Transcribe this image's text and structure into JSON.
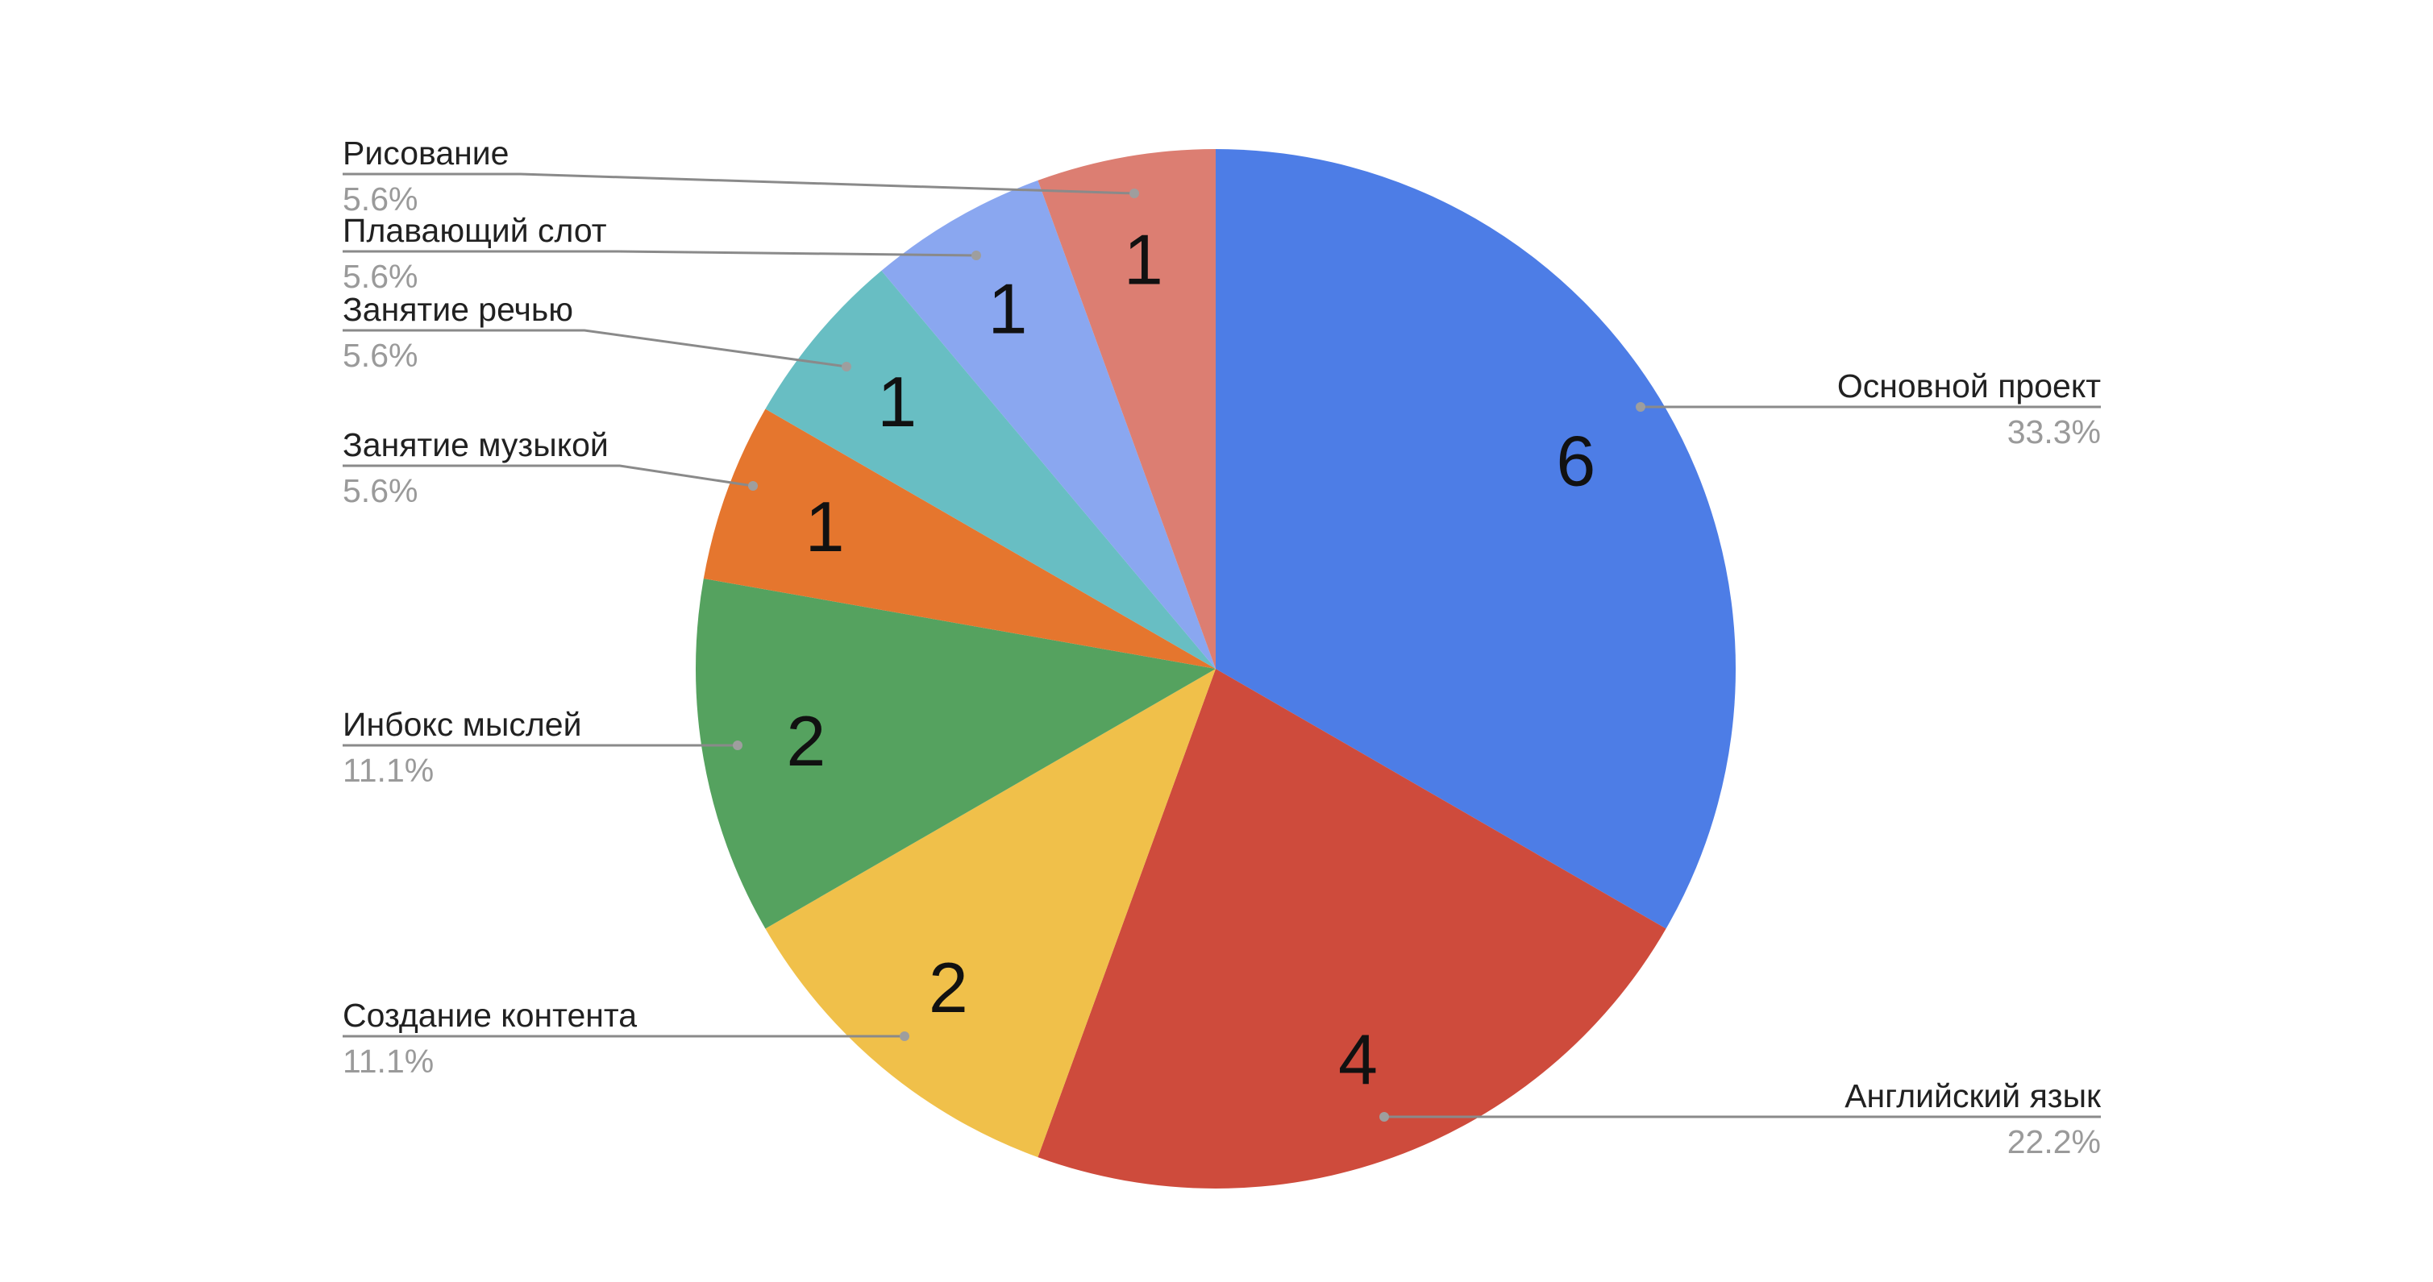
{
  "chart_data": {
    "type": "pie",
    "title": "",
    "direction": "clockwise",
    "start_angle_deg": 0,
    "total_units": 18,
    "categories": [
      "Основной проект",
      "Английский язык",
      "Создание контента",
      "Инбокс мыслей",
      "Занятие музыкой",
      "Занятие речью",
      "Плавающий слот",
      "Рисование"
    ],
    "values": [
      6,
      4,
      2,
      2,
      1,
      1,
      1,
      1
    ],
    "legend_position": "outside-callouts",
    "grid": false,
    "slices": [
      {
        "label": "Основной проект",
        "value": 6,
        "value_label": "6",
        "percent": "33.3%",
        "color": "#4D7DE6"
      },
      {
        "label": "Английский язык",
        "value": 4,
        "value_label": "4",
        "percent": "22.2%",
        "color": "#CE4B3C"
      },
      {
        "label": "Создание контента",
        "value": 2,
        "value_label": "2",
        "percent": "11.1%",
        "color": "#F0C04A"
      },
      {
        "label": "Инбокс мыслей",
        "value": 2,
        "value_label": "2",
        "percent": "11.1%",
        "color": "#55A25F"
      },
      {
        "label": "Занятие музыкой",
        "value": 1,
        "value_label": "1",
        "percent": "5.6%",
        "color": "#E5762E"
      },
      {
        "label": "Занятие речью",
        "value": 1,
        "value_label": "1",
        "percent": "5.6%",
        "color": "#68BEC3"
      },
      {
        "label": "Плавающий слот",
        "value": 1,
        "value_label": "1",
        "percent": "5.6%",
        "color": "#8AA7F0"
      },
      {
        "label": "Рисование",
        "value": 1,
        "value_label": "1",
        "percent": "5.6%",
        "color": "#DC7E72"
      }
    ],
    "style": {
      "background": "#FFFFFF",
      "label_color": "#212121",
      "percent_color": "#9A9A9A",
      "value_label_color": "#111111",
      "callout_line_color": "#8A8A8A",
      "callout_dot_color": "#9E9E9E"
    }
  }
}
